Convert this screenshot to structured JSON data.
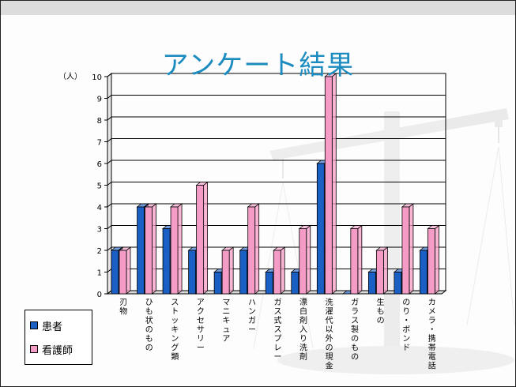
{
  "chart_data": {
    "type": "bar",
    "title": "アンケート結果",
    "ylabel": "（人）",
    "ylim": [
      0,
      10
    ],
    "yticks": [
      0,
      1,
      2,
      3,
      4,
      5,
      6,
      7,
      8,
      9,
      10
    ],
    "grid": true,
    "legend_position": "bottom-left",
    "categories": [
      "刃物",
      "ひも状のもの",
      "ストッキング類",
      "アクセサリー",
      "マニキュア",
      "ハンガー",
      "ガス式スプレー",
      "漂白剤入り洗剤",
      "洗濯代以外の現金",
      "ガラス製のもの",
      "生もの",
      "のり・ボンド",
      "カメラ・携帯電話"
    ],
    "series": [
      {
        "name": "患者",
        "color": "#1a5fc4",
        "values": [
          2,
          4,
          3,
          2,
          1,
          2,
          1,
          1,
          6,
          0,
          1,
          1,
          2
        ]
      },
      {
        "name": "看護師",
        "color": "#f59cc6",
        "values": [
          2,
          4,
          4,
          5,
          2,
          4,
          2,
          3,
          10,
          3,
          2,
          4,
          3
        ]
      }
    ]
  }
}
